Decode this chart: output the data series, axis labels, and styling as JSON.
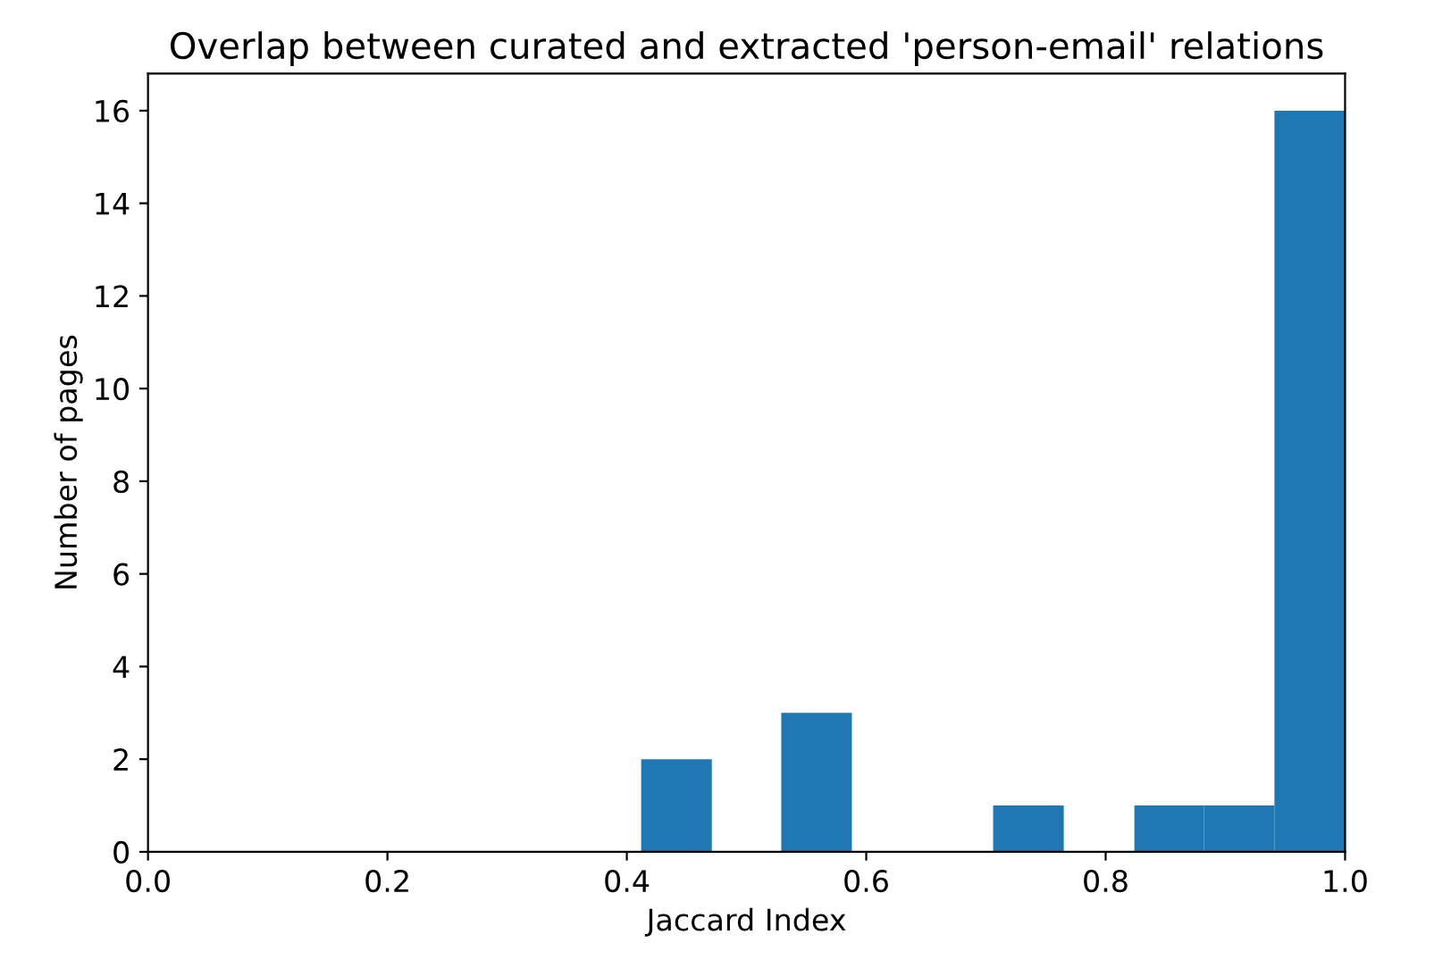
{
  "chart_data": {
    "type": "histogram",
    "title": "Overlap between curated and extracted 'person-email' relations",
    "xlabel": "Jaccard Index",
    "ylabel": "Number of pages",
    "bins": [
      0.412,
      0.471,
      0.529,
      0.588,
      0.706,
      0.765,
      0.824,
      0.882,
      0.941,
      1.0
    ],
    "values": [
      2,
      0,
      3,
      0,
      1,
      0,
      1,
      1,
      16
    ],
    "color": "#1f77b4",
    "xlim": [
      0.0,
      1.0
    ],
    "xticks": [
      {
        "value": 0,
        "label": "0.0"
      },
      0.2,
      0.4,
      0.6,
      0.8,
      {
        "value": 1,
        "label": "1.0"
      }
    ],
    "ylim": [
      0,
      16.8
    ],
    "yticks": [
      0,
      2,
      4,
      6,
      8,
      10,
      12,
      14,
      16
    ],
    "grid": false
  }
}
